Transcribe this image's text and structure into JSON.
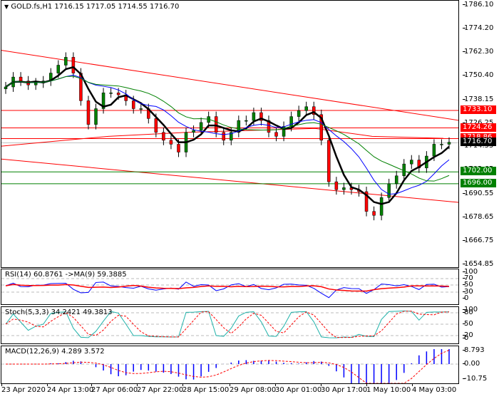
{
  "header": {
    "symbol_line": "GOLD.fs,H1  1716.15 1717.05 1714.55 1716.70",
    "menu_icon": "triangle-down-icon"
  },
  "price_axis": {
    "ticks": [
      "1786.10",
      "1774.20",
      "1762.30",
      "1750.40",
      "1738.15",
      "1726.25",
      "1714.55",
      "1702.65",
      "1690.55",
      "1678.65",
      "1666.75",
      "1654.85"
    ],
    "tags": [
      {
        "label": "1733.10",
        "color": "#ff0000"
      },
      {
        "label": "1724.26",
        "color": "#ff0000"
      },
      {
        "label": "1718.86",
        "color": "#ff0000"
      },
      {
        "label": "1716.70",
        "color": "#000000"
      },
      {
        "label": "1702.00",
        "color": "#008000"
      },
      {
        "label": "1696.00",
        "color": "#008000"
      }
    ]
  },
  "indicators": {
    "rsi": {
      "title": "RSI(14) 60.8761  ->MA(9) 59.3885",
      "ticks": [
        "100",
        "70",
        "50",
        "30",
        "0"
      ]
    },
    "stoch": {
      "title": "Stoch(5,3,3) 34.2421 49.3813",
      "ticks": [
        "100",
        "80",
        "50",
        "20",
        "0"
      ]
    },
    "macd": {
      "title": "MACD(12,26,9) 4.289 3.572",
      "ticks": [
        "8.793",
        "0.00",
        "-10.75"
      ]
    }
  },
  "time_axis": [
    "23 Apr 2020",
    "24 Apr 13:00",
    "27 Apr 06:00",
    "27 Apr 22:00",
    "28 Apr 15:00",
    "29 Apr 08:00",
    "30 Apr 01:00",
    "30 Apr 17:00",
    "1 May 10:00",
    "4 May 03:00"
  ],
  "chart_data": {
    "type": "candlestick",
    "title": "GOLD.fs,H1",
    "ohlc_current": {
      "open": 1716.15,
      "high": 1717.05,
      "low": 1714.55,
      "close": 1716.7
    },
    "ylim": [
      1654.85,
      1786.1
    ],
    "x_ticks": [
      "23 Apr 2020",
      "24 Apr 13:00",
      "27 Apr 06:00",
      "27 Apr 22:00",
      "28 Apr 15:00",
      "29 Apr 08:00",
      "30 Apr 01:00",
      "30 Apr 17:00",
      "1 May 10:00",
      "4 May 03:00"
    ],
    "horizontal_levels": [
      {
        "value": 1733.1,
        "color": "#ff0000"
      },
      {
        "value": 1724.26,
        "color": "#ff0000"
      },
      {
        "value": 1718.86,
        "color": "#ff0000"
      },
      {
        "value": 1702.0,
        "color": "#008000"
      },
      {
        "value": 1696.0,
        "color": "#008000"
      }
    ],
    "trend_channel": {
      "upper": {
        "from": 1763.5,
        "to": 1728.0
      },
      "lower": {
        "from": 1708.5,
        "to": 1686.5
      },
      "color": "#ff0000"
    },
    "close_path": [
      1745,
      1750,
      1748,
      1746,
      1747,
      1748,
      1752,
      1756,
      1760,
      1752,
      1738,
      1726,
      1734,
      1742,
      1742,
      1741,
      1738,
      1734,
      1734,
      1729,
      1722,
      1718,
      1716,
      1712,
      1722,
      1723,
      1727,
      1730,
      1722,
      1718,
      1722,
      1728,
      1728,
      1732,
      1728,
      1722,
      1720,
      1725,
      1730,
      1733,
      1735,
      1731,
      1718,
      1697,
      1693,
      1694,
      1693,
      1692,
      1682,
      1680,
      1689,
      1696,
      1700,
      1706,
      1708,
      1704,
      1710,
      1716,
      1716,
      1717
    ],
    "series": [
      {
        "name": "MA fast (black)",
        "color": "#000000"
      },
      {
        "name": "MA mid (blue)",
        "color": "#0000ff"
      },
      {
        "name": "MA slow (green)",
        "color": "#008000"
      }
    ],
    "indicators": {
      "rsi": {
        "value": 60.8761,
        "ma9": 59.3885,
        "levels": [
          70,
          50,
          30
        ]
      },
      "stoch": {
        "k": 34.2421,
        "d": 49.3813,
        "levels": [
          80,
          50,
          20
        ]
      },
      "macd": {
        "main": 4.289,
        "signal": 3.572,
        "range": [
          -10.75,
          8.793
        ]
      }
    }
  }
}
